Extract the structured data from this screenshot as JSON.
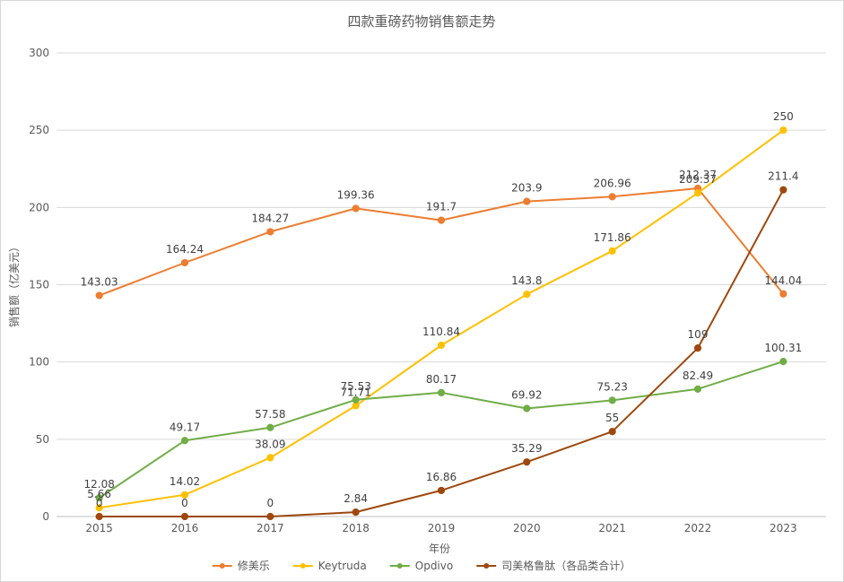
{
  "chart_data": {
    "type": "line",
    "title": "四款重磅药物销售额走势",
    "xlabel": "年份",
    "ylabel": "销售额（亿美元）",
    "ylim": [
      0,
      300
    ],
    "yticks": [
      0,
      50,
      100,
      150,
      200,
      250,
      300
    ],
    "grid": true,
    "legend": "bottom",
    "categories": [
      "2015",
      "2016",
      "2017",
      "2018",
      "2019",
      "2020",
      "2021",
      "2022",
      "2023"
    ],
    "series": [
      {
        "name": "修美乐",
        "color": "#ed7d31",
        "values": [
          143.03,
          164.24,
          184.27,
          199.36,
          191.7,
          203.9,
          206.96,
          212.37,
          144.04
        ]
      },
      {
        "name": "Keytruda",
        "color": "#ffc000",
        "values": [
          5.66,
          14.02,
          38.09,
          71.71,
          110.84,
          143.8,
          171.86,
          209.37,
          250
        ]
      },
      {
        "name": "Opdivo",
        "color": "#70ad47",
        "values": [
          12.08,
          49.17,
          57.58,
          75.53,
          80.17,
          69.92,
          75.23,
          82.49,
          100.31
        ]
      },
      {
        "name": "司美格鲁肽（各品类合计）",
        "color": "#9e480e",
        "values": [
          0,
          0,
          0,
          2.84,
          16.86,
          35.29,
          55,
          109,
          211.4
        ]
      }
    ]
  }
}
